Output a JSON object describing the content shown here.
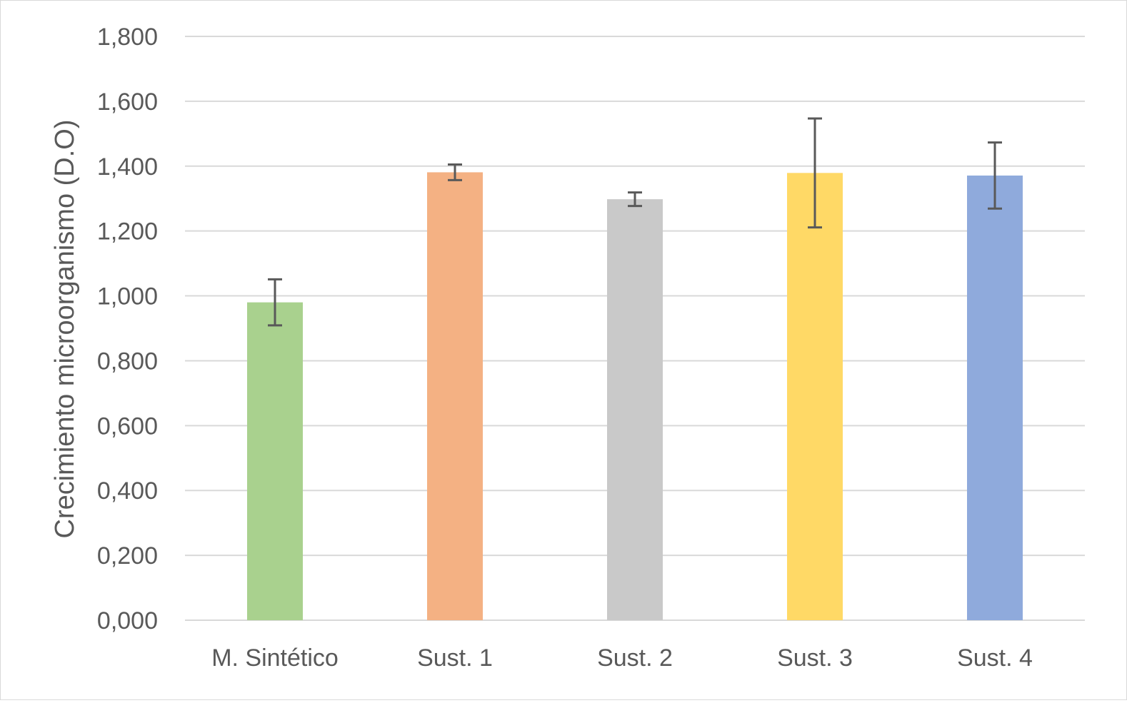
{
  "chart_data": {
    "type": "bar",
    "title": "",
    "xlabel": "",
    "ylabel": "Crecimiento microorganismo (D.O)",
    "categories": [
      "M. Sintético",
      "Sust. 1",
      "Sust. 2",
      "Sust. 3",
      "Sust. 4"
    ],
    "values": [
      0.98,
      1.381,
      1.298,
      1.379,
      1.371
    ],
    "error": [
      0.071,
      0.024,
      0.021,
      0.168,
      0.102
    ],
    "colors": [
      "#a9d18e",
      "#f4b183",
      "#c9c9c9",
      "#ffd966",
      "#8faadc"
    ],
    "ylim": [
      0,
      1.8
    ],
    "yticks": [
      "0,000",
      "0,200",
      "0,400",
      "0,600",
      "0,800",
      "1,000",
      "1,200",
      "1,400",
      "1,600",
      "1,800"
    ],
    "grid": true,
    "legend": "none"
  }
}
